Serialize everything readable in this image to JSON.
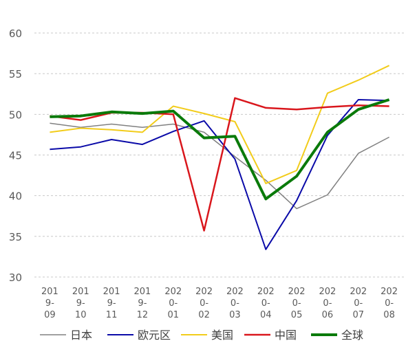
{
  "chart_data": {
    "type": "line",
    "title": "",
    "xlabel": "",
    "ylabel": "",
    "ylim": [
      30,
      60
    ],
    "yticks": [
      "30",
      "35",
      "40",
      "45",
      "50",
      "55",
      "60"
    ],
    "grid": true,
    "legend_position": "bottom",
    "categories": [
      [
        "201",
        "9-",
        "09"
      ],
      [
        "201",
        "9-",
        "10"
      ],
      [
        "201",
        "9-",
        "11"
      ],
      [
        "201",
        "9-",
        "12"
      ],
      [
        "202",
        "0-",
        "01"
      ],
      [
        "202",
        "0-",
        "02"
      ],
      [
        "202",
        "0-",
        "03"
      ],
      [
        "202",
        "0-",
        "04"
      ],
      [
        "202",
        "0-",
        "05"
      ],
      [
        "202",
        "0-",
        "06"
      ],
      [
        "202",
        "0-",
        "07"
      ],
      [
        "202",
        "0-",
        "08"
      ]
    ],
    "series": [
      {
        "name": "日本",
        "color": "#808080",
        "width": 1.5,
        "values": [
          48.9,
          48.4,
          48.8,
          48.4,
          48.8,
          47.8,
          44.8,
          41.9,
          38.4,
          40.1,
          45.2,
          47.2
        ]
      },
      {
        "name": "欧元区",
        "color": "#0a0aa8",
        "width": 2,
        "values": [
          45.7,
          46.0,
          46.9,
          46.3,
          47.9,
          49.2,
          44.5,
          33.4,
          39.4,
          47.4,
          51.8,
          51.7
        ]
      },
      {
        "name": "美国",
        "color": "#f2cc1a",
        "width": 2,
        "values": [
          47.8,
          48.3,
          48.1,
          47.8,
          51.0,
          50.1,
          49.1,
          41.5,
          43.1,
          52.6,
          54.2,
          56.0
        ]
      },
      {
        "name": "中国",
        "color": "#d9161c",
        "width": 2.5,
        "values": [
          49.8,
          49.3,
          50.2,
          50.2,
          50.0,
          35.7,
          52.0,
          50.8,
          50.6,
          50.9,
          51.1,
          51.0
        ]
      },
      {
        "name": "全球",
        "color": "#0a7a0a",
        "width": 4,
        "values": [
          49.7,
          49.8,
          50.3,
          50.1,
          50.4,
          47.1,
          47.3,
          39.6,
          42.4,
          47.8,
          50.6,
          51.8
        ]
      }
    ]
  }
}
